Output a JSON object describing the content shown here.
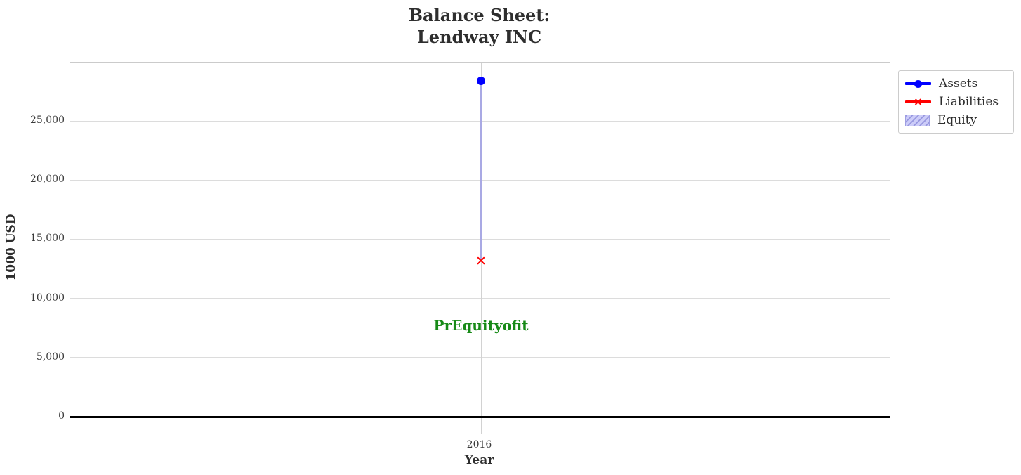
{
  "figure": {
    "title_line1": "Balance Sheet:",
    "title_line2": "Lendway INC"
  },
  "chart_data": {
    "type": "line",
    "title": "Balance Sheet:\nLendway INC",
    "xlabel": "Year",
    "ylabel": "1000 USD",
    "x": [
      "2016"
    ],
    "series": [
      {
        "name": "Assets",
        "type": "line",
        "marker": "circle",
        "color": "#0000ff",
        "values": [
          28400
        ]
      },
      {
        "name": "Liabilities",
        "type": "line",
        "marker": "x",
        "color": "#ff0000",
        "values": [
          13200
        ]
      },
      {
        "name": "Equity",
        "type": "bar",
        "hatch": "//",
        "color": "#ccccf8",
        "base": [
          13200
        ],
        "values": [
          15200
        ]
      }
    ],
    "ylim": [
      -1425,
      29930
    ],
    "ytick_values": [
      0,
      5000,
      10000,
      15000,
      20000,
      25000
    ],
    "ytick_labels": [
      "0",
      "5,000",
      "10,000",
      "15,000",
      "20,000",
      "25,000"
    ],
    "grid": true,
    "zero_line": true,
    "legend_position": "outside upper right",
    "annotation": {
      "text": "PrEquityofit",
      "x": "2016",
      "y": 7700,
      "color": "#178a17"
    },
    "colors": {
      "assets": "#0000ff",
      "liabilities": "#ff0000",
      "equity_fill": "#ccccf8",
      "equity_hatch": "#9898e0",
      "grid": "#dcdcdc",
      "plot_border": "#cbcbcb",
      "zero_line": "#000000",
      "annotation": "#178a17",
      "text": "#333333"
    }
  }
}
